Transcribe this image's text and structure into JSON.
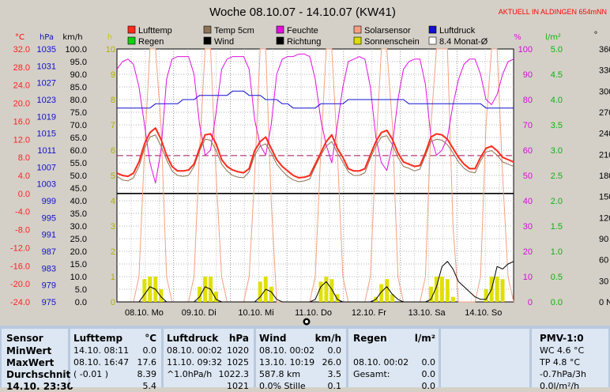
{
  "header": {
    "title": "Woche 08.10.07 - 14.10.07 (KW41)",
    "live_notice": "AKTUELL IN ALDINGEN 654mNN"
  },
  "axis_units": {
    "celsius": "°C",
    "hpa": "hPa",
    "kmh": "km/h",
    "hours": "h",
    "percent": "%",
    "rain": "l/m²",
    "direction": "°"
  },
  "legend": [
    {
      "label": "Lufttemp",
      "color": "#ff2a1a"
    },
    {
      "label": "Temp 5cm",
      "color": "#8b7355"
    },
    {
      "label": "Feuchte",
      "color": "#e010e0"
    },
    {
      "label": "Solarsensor",
      "color": "#f4a080"
    },
    {
      "label": "Luftdruck",
      "color": "#1010d0"
    },
    {
      "label": "Regen",
      "color": "#10d010"
    },
    {
      "label": "Wind",
      "color": "#000000"
    },
    {
      "label": "Richtung",
      "color": "#000000"
    },
    {
      "label": "Sonnenschein",
      "color": "#dddd00"
    },
    {
      "label": "8.4 Monat-Ø",
      "color": "#ffffff"
    }
  ],
  "chart_data": {
    "type": "line",
    "title": "Woche 08.10.07 - 14.10.07 (KW41)",
    "x_ticks": [
      "08.10. Mo",
      "09.10. Di",
      "10.10. Mi",
      "11.10. Do",
      "12.10. Fr",
      "13.10. Sa",
      "14.10. So"
    ],
    "axes": {
      "temp_c": {
        "ticks": [
          "32.0",
          "28.0",
          "24.0",
          "20.0",
          "16.0",
          "12.0",
          "8.0",
          "4.0",
          "0.0",
          "-4.0",
          "-8.0",
          "-12.0",
          "-16.0",
          "-20.0",
          "-24.0"
        ],
        "range": [
          -24,
          32
        ]
      },
      "pressure_hpa": {
        "ticks": [
          "1035",
          "1031",
          "1027",
          "1023",
          "1019",
          "1015",
          "1011",
          "1007",
          "1003",
          "999",
          "995",
          "991",
          "987",
          "983",
          "979",
          "975"
        ],
        "range": [
          975,
          1035
        ]
      },
      "wind_kmh": {
        "ticks": [
          "100.0",
          "95.0",
          "90.0",
          "85.0",
          "80.0",
          "75.0",
          "70.0",
          "65.0",
          "60.0",
          "55.0",
          "50.0",
          "45.0",
          "40.0",
          "35.0",
          "30.0",
          "25.0",
          "20.0",
          "15.0",
          "10.0",
          "5.0",
          "0.0"
        ],
        "range": [
          0,
          100
        ]
      },
      "sun_h": {
        "ticks": [
          "10",
          "9",
          "8",
          "7",
          "6",
          "5",
          "4",
          "3",
          "2",
          "1",
          "0"
        ],
        "range": [
          0,
          10
        ]
      },
      "humidity_pct": {
        "ticks": [
          "100",
          "90",
          "80",
          "70",
          "60",
          "50",
          "40",
          "30",
          "20",
          "10",
          "0"
        ],
        "range": [
          0,
          100
        ]
      },
      "rain_lm2": {
        "ticks": [
          "5.0",
          "4.5",
          "4.0",
          "3.5",
          "3.0",
          "2.5",
          "2.0",
          "1.5",
          "1.0",
          "0.5",
          "0.0"
        ],
        "range": [
          0,
          5
        ]
      },
      "direction_deg": {
        "ticks": [
          "360 N",
          "330",
          "300",
          "270 W",
          "240",
          "210",
          "180 S",
          "150",
          "120",
          "90 O",
          "60",
          "30",
          "0  N"
        ],
        "range": [
          0,
          360
        ]
      }
    },
    "series": [
      {
        "name": "Lufttemp",
        "axis": "temp_c",
        "values": [
          4.5,
          4.0,
          3.8,
          4.5,
          7.0,
          11.0,
          13.5,
          14.5,
          12.0,
          8.5,
          6.0,
          5.0,
          5.0,
          5.2,
          6.5,
          10.0,
          13.0,
          13.2,
          11.0,
          7.5,
          6.0,
          5.2,
          4.8,
          4.6,
          5.5,
          9.5,
          11.5,
          12.5,
          10.0,
          7.5,
          6.0,
          5.0,
          4.0,
          3.5,
          3.6,
          4.0,
          6.5,
          9.0,
          11.5,
          13.0,
          10.0,
          8.0,
          5.5,
          5.0,
          5.0,
          5.5,
          8.5,
          11.5,
          13.5,
          14.0,
          12.0,
          9.0,
          7.0,
          6.5,
          6.0,
          6.2,
          9.0,
          12.5,
          13.2,
          13.0,
          12.0,
          10.0,
          8.0,
          6.5,
          5.5,
          5.5,
          8.0,
          10.0,
          10.5,
          9.5,
          8.0,
          7.5,
          7.0
        ]
      },
      {
        "name": "Temp 5cm",
        "axis": "temp_c",
        "values": [
          3.8,
          3.0,
          2.8,
          3.5,
          6.0,
          10.0,
          12.5,
          13.0,
          10.5,
          7.5,
          5.0,
          4.0,
          3.8,
          4.0,
          6.0,
          9.5,
          12.0,
          11.8,
          9.5,
          6.5,
          5.0,
          4.0,
          3.6,
          3.5,
          4.8,
          8.5,
          10.5,
          11.0,
          9.0,
          6.5,
          5.0,
          3.8,
          3.0,
          2.6,
          2.8,
          3.2,
          6.0,
          8.5,
          10.5,
          11.5,
          9.0,
          7.0,
          4.8,
          4.0,
          4.0,
          4.6,
          7.8,
          10.5,
          12.5,
          12.8,
          10.8,
          8.0,
          6.0,
          5.6,
          5.0,
          5.4,
          8.5,
          11.5,
          12.0,
          11.8,
          10.8,
          9.0,
          7.0,
          5.6,
          4.8,
          4.6,
          7.2,
          9.2,
          9.5,
          8.5,
          7.0,
          6.5,
          6.0
        ]
      },
      {
        "name": "Feuchte",
        "axis": "humidity_pct",
        "values": [
          92,
          95,
          96,
          94,
          85,
          70,
          55,
          47,
          60,
          88,
          96,
          97,
          97,
          97,
          90,
          70,
          58,
          60,
          75,
          92,
          96,
          97,
          97,
          97,
          92,
          72,
          62,
          58,
          70,
          90,
          96,
          97,
          97,
          98,
          98,
          97,
          88,
          72,
          62,
          55,
          70,
          85,
          95,
          96,
          97,
          96,
          85,
          65,
          55,
          52,
          62,
          80,
          92,
          95,
          96,
          96,
          86,
          65,
          58,
          60,
          65,
          78,
          88,
          94,
          96,
          96,
          90,
          80,
          78,
          82,
          90,
          95,
          96
        ]
      },
      {
        "name": "Luftdruck",
        "axis": "pressure_hpa",
        "values": [
          1021,
          1021,
          1021,
          1021,
          1021,
          1021,
          1021,
          1022,
          1022,
          1022,
          1022,
          1022,
          1023,
          1023,
          1023,
          1024,
          1024,
          1024,
          1024,
          1024,
          1024,
          1025,
          1025,
          1025,
          1024,
          1024,
          1024,
          1023,
          1023,
          1023,
          1022,
          1022,
          1021,
          1021,
          1021,
          1021,
          1021,
          1022,
          1022,
          1022,
          1022,
          1022,
          1023,
          1023,
          1023,
          1023,
          1023,
          1023,
          1023,
          1023,
          1023,
          1023,
          1023,
          1022,
          1022,
          1022,
          1022,
          1022,
          1022,
          1022,
          1022,
          1022,
          1022,
          1022,
          1022,
          1022,
          1022,
          1021,
          1021,
          1021,
          1021,
          1021,
          1021
        ]
      },
      {
        "name": "Solarsensor",
        "axis": "sun_h",
        "values": [
          0,
          0,
          0,
          0,
          1,
          6,
          10,
          10,
          7,
          1,
          0,
          0,
          0,
          0,
          1,
          6,
          10,
          10,
          5,
          1,
          0,
          0,
          0,
          0,
          1,
          5,
          10,
          10,
          4,
          0,
          0,
          0,
          0,
          0,
          0,
          0,
          1,
          6,
          10,
          10,
          6,
          1,
          0,
          0,
          0,
          0,
          1,
          6,
          10,
          10,
          7,
          1,
          0,
          0,
          0,
          0,
          1,
          7,
          10,
          10,
          10,
          3,
          0,
          0,
          0,
          0,
          1,
          7,
          10,
          10,
          5,
          1,
          0
        ]
      },
      {
        "name": "Wind",
        "axis": "wind_kmh",
        "values": [
          0,
          0,
          0,
          0,
          0,
          3,
          6,
          5,
          2,
          0,
          0,
          0,
          0,
          0,
          0,
          2,
          6,
          5,
          1,
          0,
          0,
          0,
          0,
          0,
          0,
          0,
          2,
          5,
          4,
          1,
          0,
          0,
          0,
          0,
          0,
          0,
          1,
          6,
          8,
          5,
          1,
          0,
          0,
          0,
          0,
          0,
          0,
          1,
          4,
          6,
          3,
          1,
          0,
          0,
          0,
          0,
          0,
          1,
          6,
          14,
          16,
          13,
          8,
          6,
          4,
          2,
          1,
          1,
          5,
          14,
          13,
          15,
          16
        ]
      },
      {
        "name": "Sonnenschein",
        "axis": "sun_h",
        "values": [
          0,
          0,
          0,
          0,
          0,
          0.9,
          1.0,
          1.0,
          0.5,
          0,
          0,
          0,
          0,
          0,
          0,
          0.6,
          1.0,
          1.0,
          0.4,
          0,
          0,
          0,
          0,
          0,
          0,
          0,
          0.8,
          1.0,
          0.6,
          0,
          0,
          0,
          0,
          0,
          0,
          0,
          0,
          0.8,
          1.0,
          0.9,
          0.3,
          0,
          0,
          0,
          0,
          0,
          0,
          0.2,
          0.7,
          0.9,
          0.3,
          0,
          0,
          0,
          0,
          0,
          0,
          0.6,
          1.0,
          1.0,
          0.9,
          0.2,
          0,
          0,
          0,
          0,
          0,
          0.5,
          1.0,
          1.0,
          0.9,
          0,
          0
        ]
      },
      {
        "name": "8.4 Monat-Ø",
        "axis": "temp_c",
        "values": [
          8.4,
          8.4
        ]
      }
    ],
    "reference_lines": {
      "temp_zero_c": 0.0
    },
    "grid": true
  },
  "table": {
    "sensor": {
      "header": "Sensor",
      "rows": [
        "MinWert",
        "MaxWert",
        "Durchschnitt",
        "14.10. 23:30"
      ]
    },
    "lufttemp": {
      "header": "Lufttemp",
      "unit": "°C",
      "rows": [
        [
          "14.10.  08:11",
          "0.0"
        ],
        [
          "08.10.  16:47",
          "17.6"
        ],
        [
          "( -0.01 )",
          "8.39"
        ],
        [
          "",
          "5.4"
        ]
      ]
    },
    "luftdruck": {
      "header": "Luftdruck",
      "unit": "hPa",
      "rows": [
        [
          "08.10.  00:02",
          "1020"
        ],
        [
          "11.10.  09:32",
          "1025"
        ],
        [
          "^1.0hPa/h",
          "1022.3"
        ],
        [
          "",
          "1021"
        ]
      ]
    },
    "wind": {
      "header": "Wind",
      "unit": "km/h",
      "rows": [
        [
          "08.10.  00:02",
          "0.0"
        ],
        [
          "13.10.  10:19",
          "26.0"
        ],
        [
          "587.8 km",
          "3.5"
        ],
        [
          "0.0% Stille",
          "0.1"
        ]
      ]
    },
    "regen": {
      "header": "Regen",
      "unit": "l/m²",
      "rows": [
        [
          "",
          ""
        ],
        [
          "08.10.  00:02",
          "0.0"
        ],
        [
          "Gesamt:",
          "0.0"
        ],
        [
          "",
          "0.0"
        ]
      ]
    },
    "pmv": {
      "header": "PMV-1:0",
      "rows": [
        "WC 4.6 °C",
        "TP 4.8 °C",
        "-0.7hPa/3h",
        "0.0l/m²/h"
      ]
    }
  }
}
